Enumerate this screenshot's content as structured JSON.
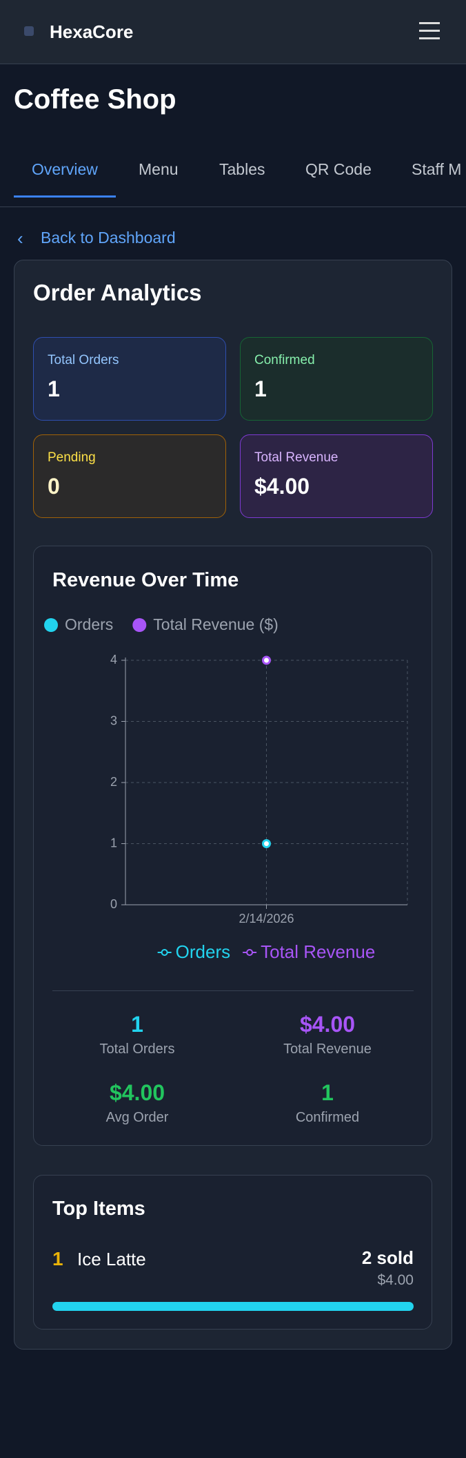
{
  "header": {
    "brand": "HexaCore"
  },
  "page_title": "Coffee Shop",
  "tabs": [
    "Overview",
    "Menu",
    "Tables",
    "QR Code",
    "Staff M"
  ],
  "back_link": "Back to Dashboard",
  "analytics": {
    "title": "Order Analytics",
    "stats": [
      {
        "label": "Total Orders",
        "value": "1"
      },
      {
        "label": "Confirmed",
        "value": "1"
      },
      {
        "label": "Pending",
        "value": "0"
      },
      {
        "label": "Total Revenue",
        "value": "$4.00"
      }
    ]
  },
  "chart_data": {
    "type": "line",
    "title": "Revenue Over Time",
    "x": [
      "2/14/2026"
    ],
    "series": [
      {
        "name": "Orders",
        "color": "#22d3ee",
        "values": [
          1
        ]
      },
      {
        "name": "Total Revenue ($)",
        "color": "#a855f7",
        "values": [
          4
        ]
      }
    ],
    "bottom_legend": [
      "Orders",
      "Total Revenue"
    ],
    "ylim": [
      0,
      4
    ],
    "yticks": [
      0,
      1,
      2,
      3,
      4
    ],
    "grid": true
  },
  "summary": [
    {
      "value": "1",
      "label": "Total Orders"
    },
    {
      "value": "$4.00",
      "label": "Total Revenue"
    },
    {
      "value": "$4.00",
      "label": "Avg Order"
    },
    {
      "value": "1",
      "label": "Confirmed"
    }
  ],
  "top_items": {
    "title": "Top Items",
    "items": [
      {
        "rank": "1",
        "name": "Ice Latte",
        "sold": "2 sold",
        "price": "$4.00"
      }
    ]
  }
}
